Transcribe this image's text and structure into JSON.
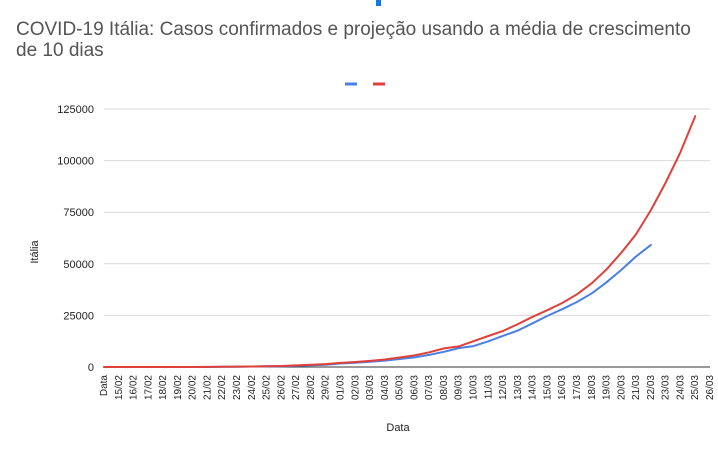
{
  "chart_data": {
    "type": "line",
    "title": "COVID-19 Itália: Casos confirmados e projeção usando a média de crescimento de 10 dias",
    "xlabel": "Data",
    "ylabel": "Itália",
    "ylim": [
      0,
      125000
    ],
    "yticks": [
      "0",
      "25000",
      "50000",
      "75000",
      "100000",
      "125000"
    ],
    "categories": [
      "Data",
      "15/02",
      "16/02",
      "17/02",
      "18/02",
      "19/02",
      "20/02",
      "21/02",
      "22/02",
      "23/02",
      "24/02",
      "25/02",
      "26/02",
      "27/02",
      "28/02",
      "29/02",
      "01/03",
      "02/03",
      "03/03",
      "04/03",
      "05/03",
      "06/03",
      "07/03",
      "08/03",
      "09/03",
      "10/03",
      "11/03",
      "12/03",
      "13/03",
      "14/03",
      "15/03",
      "16/03",
      "17/03",
      "18/03",
      "19/03",
      "20/03",
      "21/03",
      "22/03",
      "23/03",
      "24/03",
      "25/03",
      "26/03"
    ],
    "legend_position": "top",
    "series": [
      {
        "color": "#4a7fe3",
        "values": [
          0,
          3,
          3,
          3,
          3,
          3,
          3,
          20,
          79,
          150,
          229,
          322,
          400,
          650,
          888,
          1128,
          1694,
          2036,
          2502,
          3089,
          3858,
          4636,
          5883,
          7375,
          9172,
          10149,
          12462,
          15113,
          17660,
          21157,
          24747,
          27980,
          31506,
          35713,
          41035,
          47021,
          53578,
          59138,
          null,
          null,
          null,
          null
        ]
      },
      {
        "color": "#e0403a",
        "values": [
          0,
          3,
          3,
          3,
          3,
          3,
          3,
          25,
          90,
          170,
          260,
          360,
          470,
          780,
          1050,
          1400,
          2000,
          2400,
          2950,
          3650,
          4600,
          5600,
          7100,
          9000,
          10000,
          12500,
          15000,
          17500,
          20800,
          24300,
          27500,
          31000,
          35200,
          40600,
          47300,
          55400,
          64400,
          76000,
          89400,
          104000,
          121500,
          null
        ]
      }
    ]
  }
}
